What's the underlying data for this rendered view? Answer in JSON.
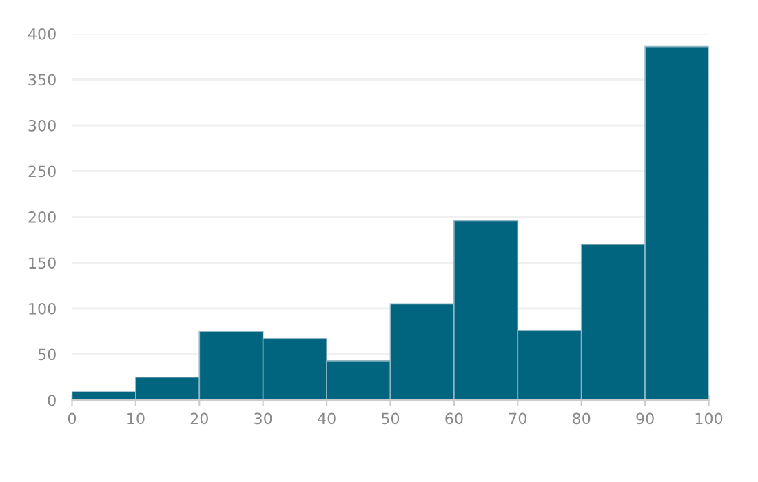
{
  "chart_data": {
    "type": "histogram",
    "bins": [
      0,
      10,
      20,
      30,
      40,
      50,
      60,
      70,
      80,
      90,
      100
    ],
    "values": [
      9,
      25,
      75,
      67,
      43,
      105,
      196,
      76,
      170,
      386
    ],
    "color": "#02657f",
    "xlim": [
      0,
      100
    ],
    "xticks": [
      0,
      10,
      20,
      30,
      40,
      50,
      60,
      70,
      80,
      90,
      100
    ],
    "ylim": [
      0,
      400
    ],
    "yticks": [
      0,
      50,
      100,
      150,
      200,
      250,
      300,
      350,
      400
    ],
    "grid": "y"
  }
}
